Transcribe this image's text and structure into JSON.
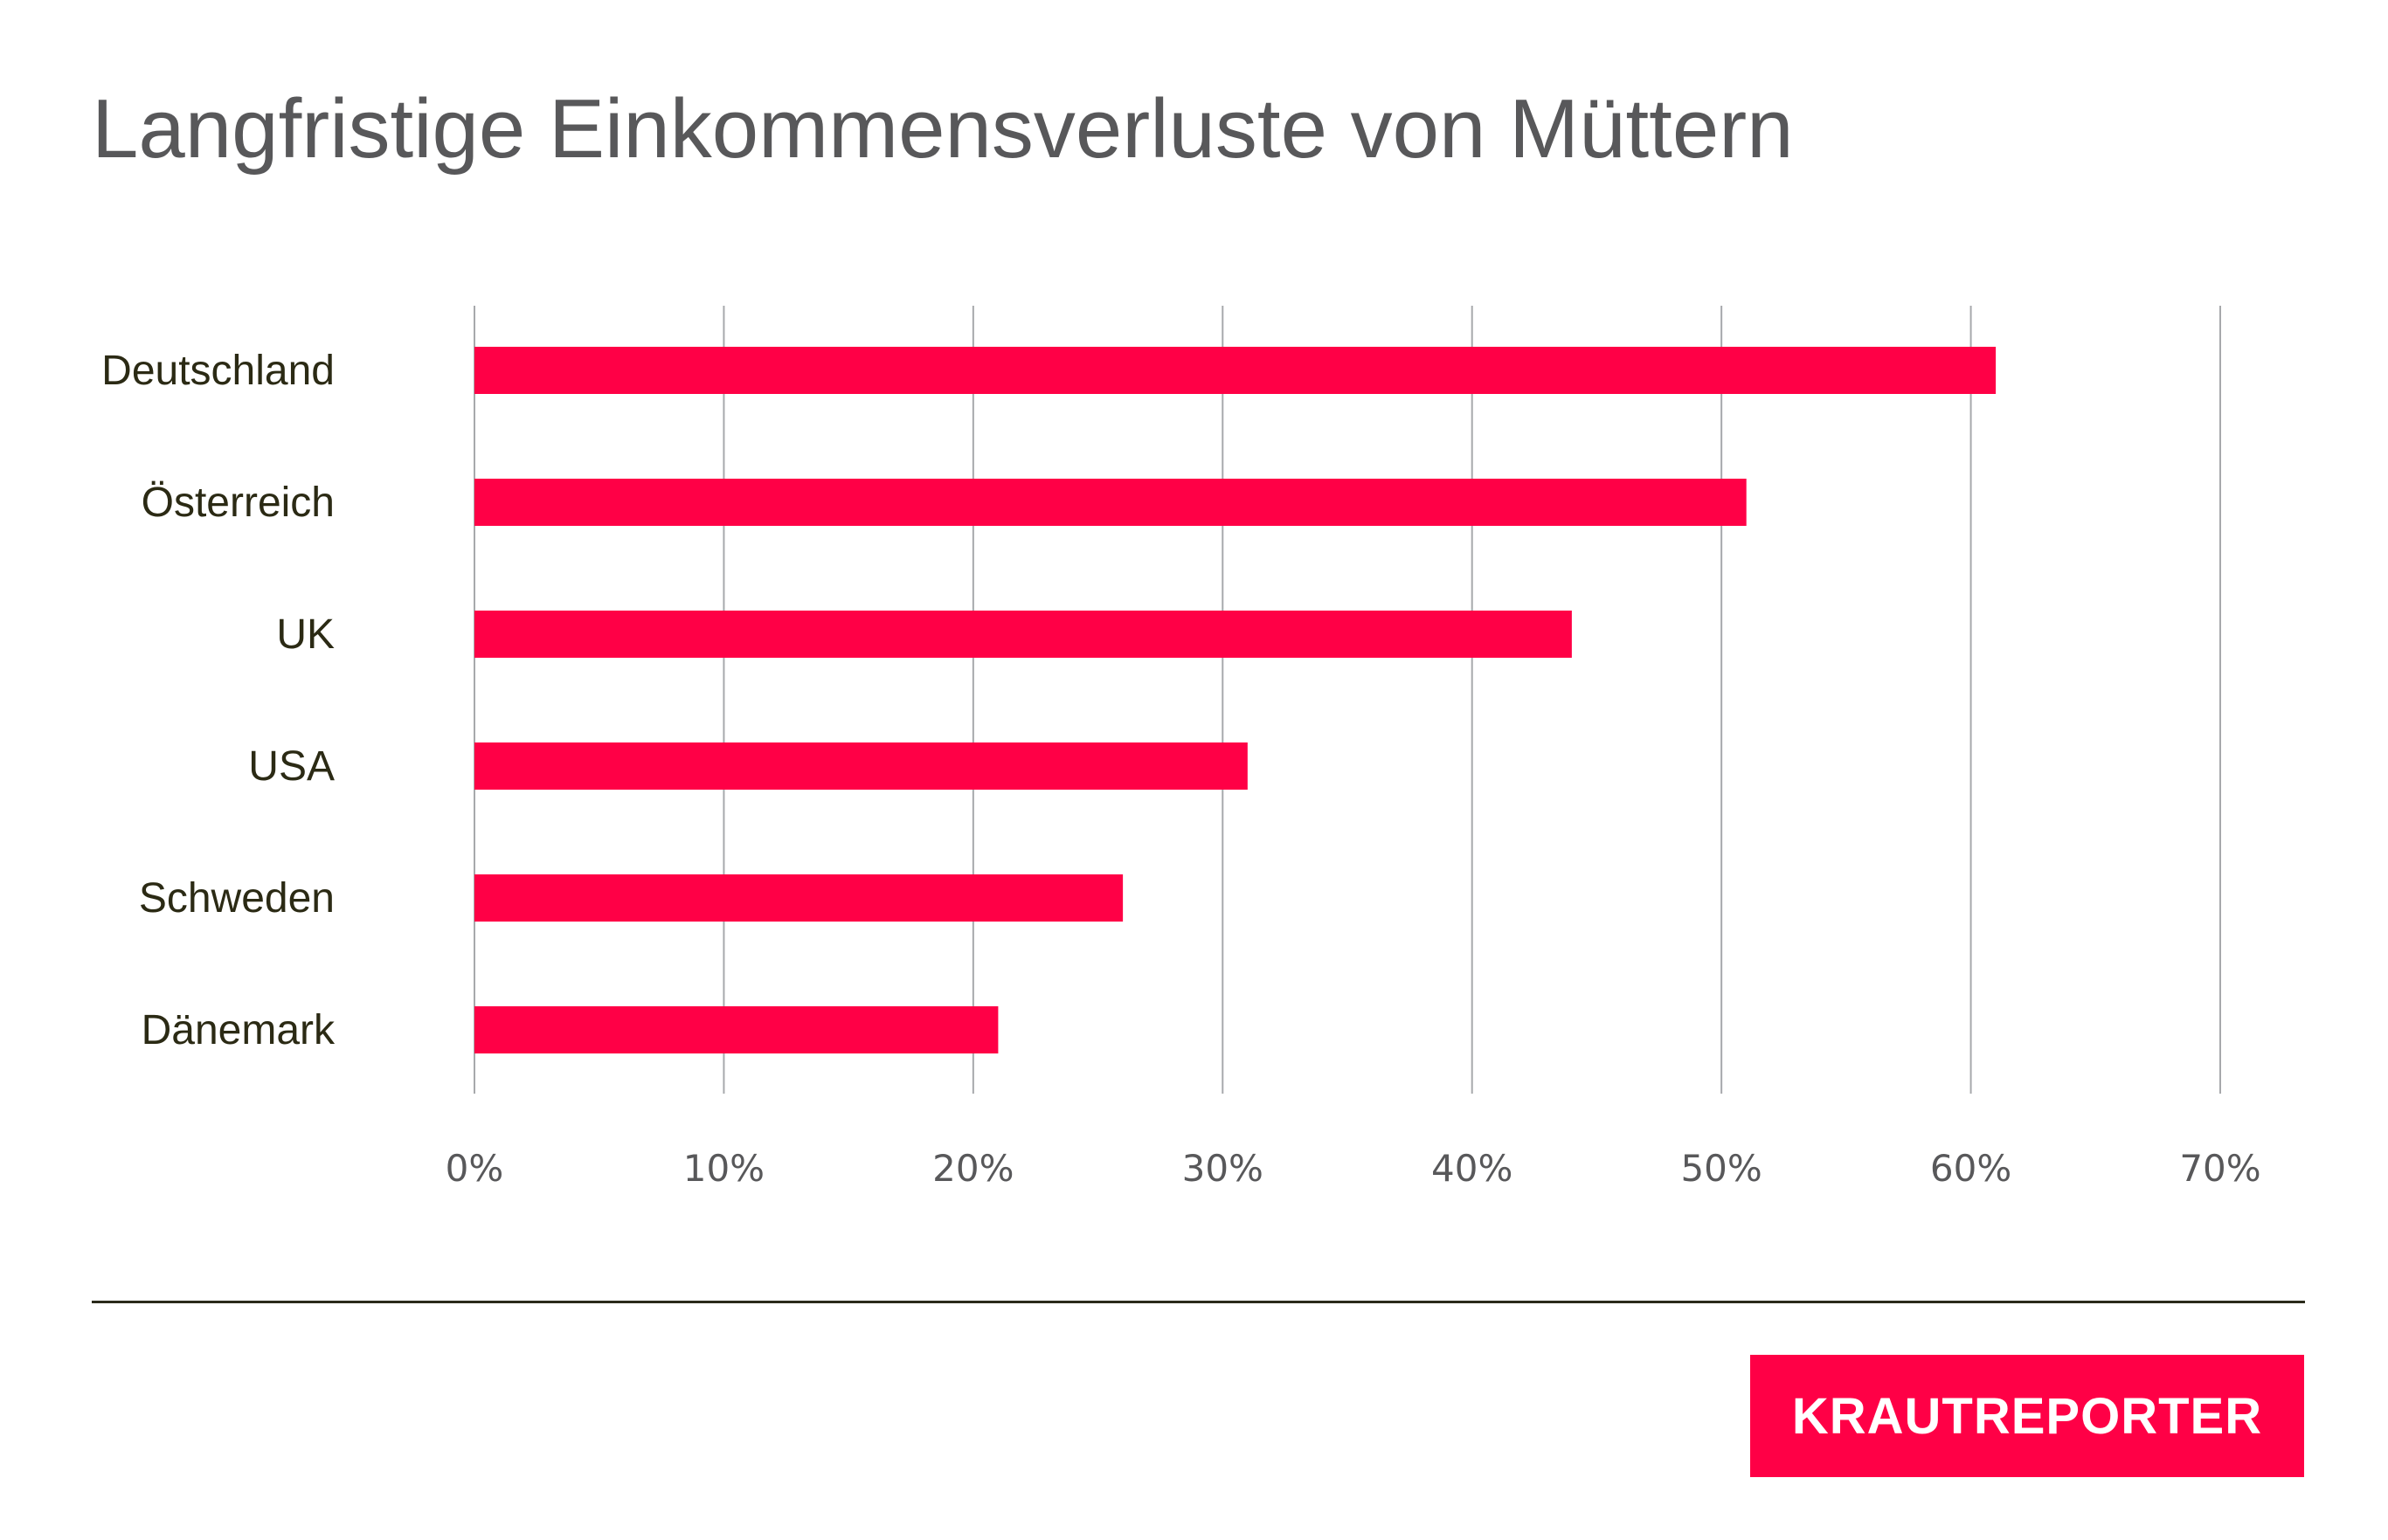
{
  "colors": {
    "bar": "#ff0046",
    "grid": "#a7a9ac",
    "label": "#2b2a14",
    "tick": "#58585a",
    "title": "#58585a"
  },
  "logo": {
    "text": "KRAUTREPORTER"
  },
  "chart_data": {
    "type": "bar",
    "orientation": "horizontal",
    "title": "Langfristige Einkommensverluste von Müttern",
    "xlabel": "",
    "ylabel": "",
    "categories": [
      "Deutschland",
      "Österreich",
      "UK",
      "USA",
      "Schweden",
      "Dänemark"
    ],
    "values": [
      61,
      51,
      44,
      31,
      26,
      21
    ],
    "xlim": [
      0,
      70
    ],
    "xticks": [
      "0%",
      "10%",
      "20%",
      "30%",
      "40%",
      "50%",
      "60%",
      "70%"
    ],
    "grid": true,
    "legend": "none"
  }
}
